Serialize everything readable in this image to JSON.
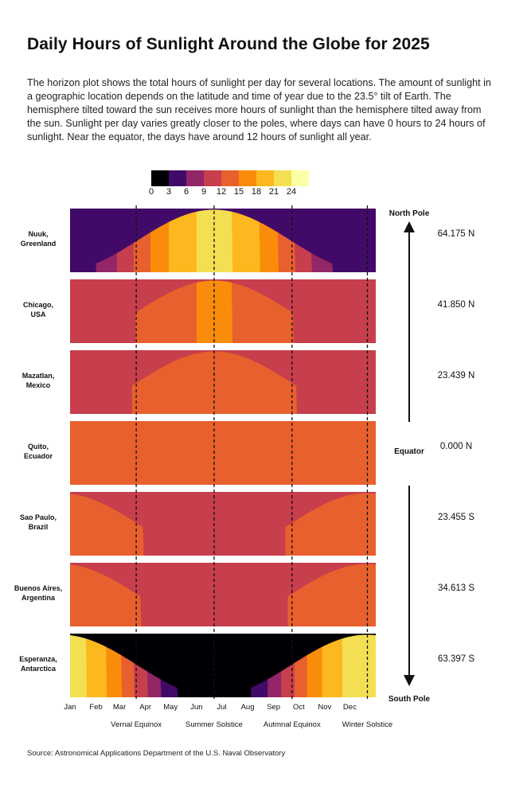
{
  "title": "Daily Hours of Sunlight Around the Globe for 2025",
  "description": "The horizon plot shows the total hours of sunlight per day for several locations. The amount of sunlight in a geographic location depends on the latitude and time of year due to the 23.5° tilt of Earth. The hemisphere tilted toward the sun receives more hours of sunlight than the hemisphere tilted away from the sun. Sunlight per day varies greatly closer to the poles, where days can have 0 hours to 24 hours of sunlight. Near the equator, the days have around 12 hours of sunlight all year.",
  "source": "Source: Astronomical Applications Department of the U.S. Naval Observatory",
  "chart_data": {
    "type": "heatmap",
    "title": "Daily Hours of Sunlight Around the Globe for 2025",
    "legend": {
      "ticks": [
        "0",
        "3",
        "6",
        "9",
        "12",
        "15",
        "18",
        "21",
        "24"
      ],
      "colors": [
        "#000004",
        "#420a68",
        "#932667",
        "#c73e4c",
        "#e8602d",
        "#f98c0a",
        "#fbb91f",
        "#f4df53",
        "#fcffa4"
      ]
    },
    "band_width_hours": 3,
    "months": [
      "Jan",
      "Feb",
      "Mar",
      "Apr",
      "May",
      "Jun",
      "Jul",
      "Aug",
      "Sep",
      "Oct",
      "Nov",
      "Dec"
    ],
    "events": [
      {
        "label": "Vernal Equinox",
        "day": 79
      },
      {
        "label": "Summer Solstice",
        "day": 172
      },
      {
        "label": "Autmnal Equinox",
        "day": 265
      },
      {
        "label": "Winter Solstice",
        "day": 355
      }
    ],
    "locations": [
      {
        "name_line1": "Nuuk,",
        "name_line2": "Greenland",
        "latitude": "64.175 N",
        "min_hours": 3.9,
        "max_hours": 21.6
      },
      {
        "name_line1": "Chicago,",
        "name_line2": "USA",
        "latitude": "41.850 N",
        "min_hours": 9.1,
        "max_hours": 15.2
      },
      {
        "name_line1": "Mazatlan,",
        "name_line2": "Mexico",
        "latitude": "23.439 N",
        "min_hours": 10.9,
        "max_hours": 13.4
      },
      {
        "name_line1": "Quito,",
        "name_line2": "Ecuador",
        "latitude": "0.000 N",
        "min_hours": 12.1,
        "max_hours": 12.1
      },
      {
        "name_line1": "Sao Paulo,",
        "name_line2": "Brazil",
        "latitude": "23.455 S",
        "min_hours": 10.9,
        "max_hours": 13.4
      },
      {
        "name_line1": "Buenos Aires,",
        "name_line2": "Argentina",
        "latitude": "34.613 S",
        "min_hours": 9.8,
        "max_hours": 14.5
      },
      {
        "name_line1": "Esperanza,",
        "name_line2": "Antarctica",
        "latitude": "63.397 S",
        "min_hours": 0,
        "max_hours": 22.5
      }
    ],
    "axis_labels": {
      "north": "North Pole",
      "equator": "Equator",
      "south": "South Pole"
    }
  }
}
